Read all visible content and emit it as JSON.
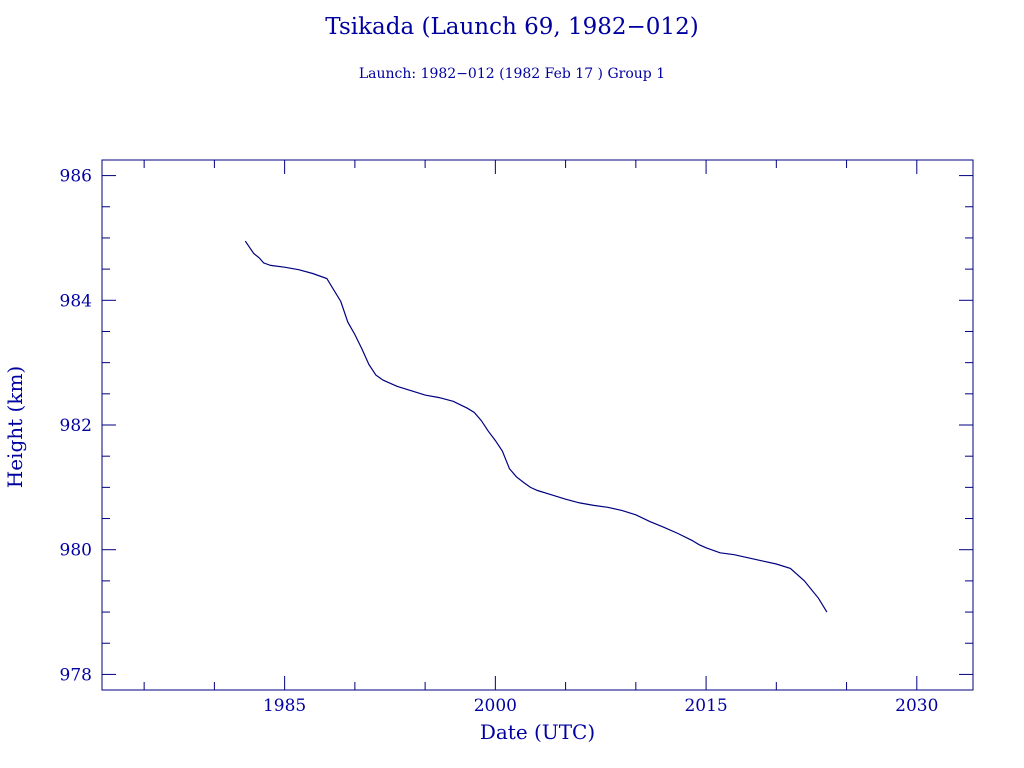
{
  "chart_data": {
    "type": "line",
    "title": "Tsikada (Launch 69, 1982−012)",
    "subtitle": "Launch: 1982−012  (1982 Feb 17 )  Group 1",
    "xlabel": "Date (UTC)",
    "ylabel": "Height (km)",
    "xlim": [
      1972,
      2034
    ],
    "ylim": [
      977.75,
      986.25
    ],
    "xticks": [
      1985,
      2000,
      2015,
      2030
    ],
    "yticks": [
      978,
      980,
      982,
      984,
      986
    ],
    "grid": false,
    "colors": {
      "axes": "#000080",
      "line": "#000080",
      "text": "#0000a0"
    },
    "series": [
      {
        "x": [
          1982.2,
          1982.5,
          1982.8,
          1983.2,
          1983.5,
          1984.0,
          1985.0,
          1986.0,
          1987.0,
          1988.0,
          1989.0,
          1989.5,
          1990.0,
          1990.5,
          1991.0,
          1991.5,
          1992.0,
          1992.5,
          1993.0,
          1994.0,
          1995.0,
          1996.0,
          1997.0,
          1998.0,
          1998.5,
          1999.0,
          1999.5,
          2000.0,
          2000.5,
          2001.0,
          2001.5,
          2002.0,
          2002.5,
          2003.0,
          2004.0,
          2005.0,
          2006.0,
          2007.0,
          2008.0,
          2009.0,
          2010.0,
          2011.0,
          2012.0,
          2013.0,
          2014.0,
          2014.5,
          2015.0,
          2016.0,
          2017.0,
          2018.0,
          2019.0,
          2020.0,
          2021.0,
          2022.0,
          2023.0,
          2023.6
        ],
        "y": [
          984.95,
          984.85,
          984.75,
          984.68,
          984.6,
          984.56,
          984.53,
          984.49,
          984.43,
          984.35,
          983.98,
          983.65,
          983.45,
          983.22,
          982.97,
          982.8,
          982.72,
          982.67,
          982.62,
          982.55,
          982.48,
          982.44,
          982.38,
          982.27,
          982.2,
          982.07,
          981.9,
          981.75,
          981.58,
          981.3,
          981.17,
          981.08,
          981.0,
          980.95,
          980.88,
          980.81,
          980.75,
          980.71,
          980.68,
          980.63,
          980.56,
          980.45,
          980.36,
          980.26,
          980.15,
          980.08,
          980.03,
          979.95,
          979.92,
          979.87,
          979.82,
          979.77,
          979.7,
          979.5,
          979.22,
          979.0
        ]
      }
    ]
  }
}
